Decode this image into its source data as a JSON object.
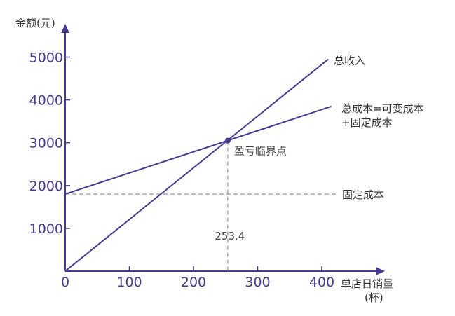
{
  "chart_data": {
    "type": "line",
    "ylabel": "金额(元)",
    "xlabel_line1": "单店日销量",
    "xlabel_line2": "(杯)",
    "xlim": [
      0,
      420
    ],
    "ylim": [
      0,
      5000
    ],
    "x_ticks": [
      "0",
      "100",
      "200",
      "300",
      "400"
    ],
    "y_ticks": [
      "1000",
      "2000",
      "3000",
      "4000",
      "5000"
    ],
    "series": [
      {
        "name": "总收入",
        "x": [
          0,
          410
        ],
        "y": [
          0,
          4950
        ]
      },
      {
        "name_line1": "总成本=可变成本",
        "name_line2": "+固定成本",
        "x": [
          0,
          415
        ],
        "y": [
          1800,
          3850
        ]
      }
    ],
    "reference_line": {
      "name": "固定成本",
      "y": 1800
    },
    "breakeven": {
      "label": "盈亏临界点",
      "x": 253.4,
      "y": 3050,
      "x_label": "253.4"
    },
    "colors": {
      "axis": "#4a3a8f",
      "lines": "#4a3a8f",
      "dashed": "#a9a9b8",
      "tick_text": "#4a3a8f"
    }
  }
}
